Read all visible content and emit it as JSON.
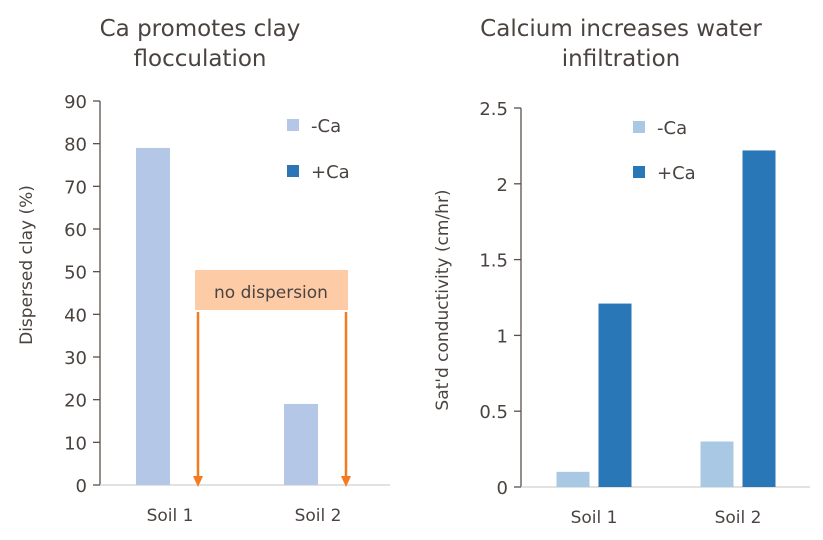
{
  "chart_data": [
    {
      "type": "bar",
      "title": "Ca promotes clay flocculation",
      "title_lines": [
        "Ca promotes clay",
        "flocculation"
      ],
      "xlabel": "",
      "ylabel": "Dispersed clay (%)",
      "categories": [
        "Soil 1",
        "Soil 2"
      ],
      "ylim": [
        0,
        90
      ],
      "yticks": [
        "0",
        "10",
        "20",
        "30",
        "40",
        "50",
        "60",
        "70",
        "80",
        "90"
      ],
      "series": [
        {
          "name": "-Ca",
          "color": "#b4c7e7",
          "values": [
            79,
            19
          ]
        },
        {
          "name": "+Ca",
          "color": "#2e75b6",
          "values": [
            0,
            0
          ]
        }
      ],
      "annotation": {
        "text": "no dispersion",
        "box_color": "#fdcca6",
        "arrow_color": "#f47b20"
      },
      "legend": "top-right",
      "grid": false
    },
    {
      "type": "bar",
      "title": "Calcium increases water infiltration",
      "title_lines": [
        "Calcium increases water",
        "infiltration"
      ],
      "xlabel": "",
      "ylabel": "Sat'd conductivity  (cm/hr)",
      "categories": [
        "Soil 1",
        "Soil 2"
      ],
      "ylim": [
        0,
        2.5
      ],
      "yticks": [
        "0",
        "0.5",
        "1",
        "1.5",
        "2",
        "2.5"
      ],
      "series": [
        {
          "name": "-Ca",
          "color": "#a9c8e3",
          "values": [
            0.1,
            0.3
          ]
        },
        {
          "name": "+Ca",
          "color": "#2a77b8",
          "values": [
            1.21,
            2.22
          ]
        }
      ],
      "legend": "top-right",
      "grid": false
    }
  ]
}
